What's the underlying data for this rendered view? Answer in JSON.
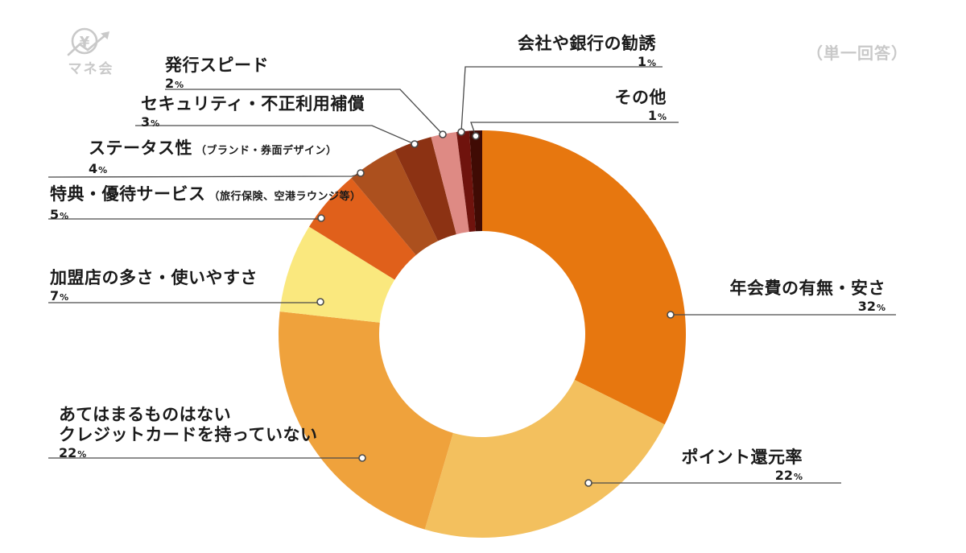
{
  "page": {
    "background_color": "#FFFFFF"
  },
  "logo": {
    "text": "マネ会",
    "icon": "yen-coin-growth-arrow-icon",
    "color": "#C9C9C9"
  },
  "chart_data": {
    "type": "pie",
    "subtype": "donut",
    "note": "（単一回答）",
    "unit": "%",
    "start_angle_deg": 0,
    "direction": "clockwise",
    "label_color": "#1A1A1A",
    "callout_line_color": "#4A4A4A",
    "segments": [
      {
        "label": "年会費の有無・安さ",
        "value": 32,
        "color": "#E7770F"
      },
      {
        "label": "ポイント還元率",
        "value": 22,
        "color": "#F3C05E"
      },
      {
        "label": "あてはまるものはない",
        "label2": "クレジットカードを持っていない",
        "value": 22,
        "color": "#EFA23C"
      },
      {
        "label": "加盟店の多さ・使いやすさ",
        "value": 7,
        "color": "#FAE87E"
      },
      {
        "label": "特典・優待サービス",
        "sublabel": "（旅行保険、空港ラウンジ等）",
        "value": 5,
        "color": "#E0601B"
      },
      {
        "label": "ステータス性",
        "sublabel": "（ブランド・券面デザイン）",
        "value": 4,
        "color": "#AC501E"
      },
      {
        "label": "セキュリティ・不正利用補償",
        "value": 3,
        "color": "#8C3213"
      },
      {
        "label": "発行スピード",
        "value": 2,
        "color": "#DE8A84"
      },
      {
        "label": "会社や銀行の勧誘",
        "value": 1,
        "color": "#6F130D"
      },
      {
        "label": "その他",
        "value": 1,
        "color": "#400B04"
      }
    ]
  }
}
